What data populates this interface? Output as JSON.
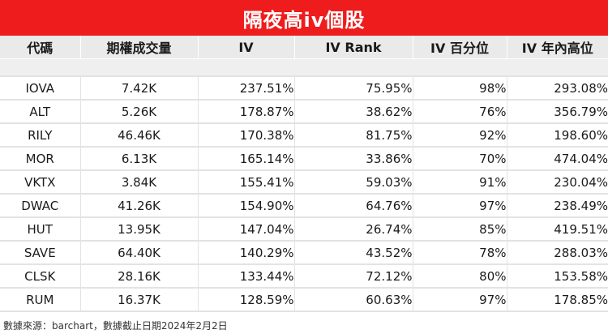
{
  "title": "隔夜高iv個股",
  "columns": [
    "代碼",
    "期權成交量",
    "IV",
    "IV Rank",
    "IV 百分位",
    "IV 年內高位"
  ],
  "rows": [
    [
      "IOVA",
      "7.42K",
      "237.51%",
      "75.95%",
      "98%",
      "293.08%"
    ],
    [
      "ALT",
      "5.26K",
      "178.87%",
      "38.62%",
      "76%",
      "356.79%"
    ],
    [
      "RILY",
      "46.46K",
      "170.38%",
      "81.75%",
      "92%",
      "198.60%"
    ],
    [
      "MOR",
      "6.13K",
      "165.14%",
      "33.86%",
      "70%",
      "474.04%"
    ],
    [
      "VKTX",
      "3.84K",
      "155.41%",
      "59.03%",
      "91%",
      "230.04%"
    ],
    [
      "DWAC",
      "41.26K",
      "154.90%",
      "64.76%",
      "97%",
      "238.49%"
    ],
    [
      "HUT",
      "13.95K",
      "147.04%",
      "26.74%",
      "85%",
      "419.51%"
    ],
    [
      "SAVE",
      "64.40K",
      "140.29%",
      "43.52%",
      "78%",
      "288.03%"
    ],
    [
      "CLSK",
      "28.16K",
      "133.44%",
      "72.12%",
      "80%",
      "153.58%"
    ],
    [
      "RUM",
      "16.37K",
      "128.59%",
      "60.63%",
      "97%",
      "178.85%"
    ]
  ],
  "source_note": "數據來源：barchart，數據截止日期2024年2月2日",
  "colors": {
    "header_bar": "#ee1c1c",
    "column_header_bg": "#eaeaea",
    "grid": "#e3e3e3"
  }
}
